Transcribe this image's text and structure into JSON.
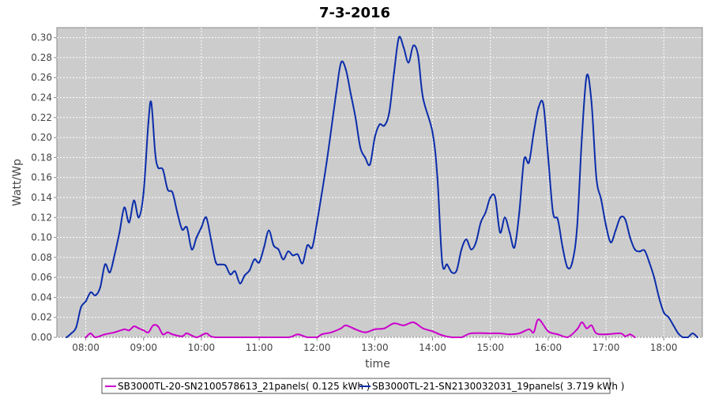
{
  "chart_data": {
    "type": "line",
    "title": "7-3-2016",
    "xlabel": "time",
    "ylabel": "Watt/Wp",
    "xlim": [
      "07:30",
      "18:40"
    ],
    "ylim": [
      0,
      0.31
    ],
    "x_ticks": [
      "08:00",
      "09:00",
      "10:00",
      "11:00",
      "12:00",
      "13:00",
      "14:00",
      "15:00",
      "16:00",
      "17:00",
      "18:00"
    ],
    "y_ticks": [
      "0.00",
      "0.02",
      "0.04",
      "0.06",
      "0.08",
      "0.10",
      "0.12",
      "0.14",
      "0.16",
      "0.18",
      "0.20",
      "0.22",
      "0.24",
      "0.26",
      "0.28",
      "0.30"
    ],
    "grid": true,
    "legend_position": "bottom",
    "background_color": "#cccccc",
    "series": [
      {
        "name": "SB3000TL-20-SN2100578613_21panels( 0.125 kWh )",
        "color": "#cc00cc",
        "points": [
          [
            "08:00",
            0.0
          ],
          [
            "08:05",
            0.004
          ],
          [
            "08:10",
            0.0
          ],
          [
            "08:20",
            0.003
          ],
          [
            "08:30",
            0.005
          ],
          [
            "08:40",
            0.008
          ],
          [
            "08:45",
            0.007
          ],
          [
            "08:50",
            0.011
          ],
          [
            "08:55",
            0.009
          ],
          [
            "09:00",
            0.007
          ],
          [
            "09:05",
            0.005
          ],
          [
            "09:10",
            0.012
          ],
          [
            "09:15",
            0.011
          ],
          [
            "09:20",
            0.003
          ],
          [
            "09:25",
            0.005
          ],
          [
            "09:30",
            0.003
          ],
          [
            "09:40",
            0.001
          ],
          [
            "09:45",
            0.004
          ],
          [
            "09:55",
            0.0
          ],
          [
            "10:05",
            0.004
          ],
          [
            "10:15",
            0.0
          ],
          [
            "11:00",
            0.0
          ],
          [
            "11:30",
            0.0
          ],
          [
            "11:40",
            0.003
          ],
          [
            "11:50",
            0.0
          ],
          [
            "12:00",
            0.0
          ],
          [
            "12:05",
            0.003
          ],
          [
            "12:15",
            0.005
          ],
          [
            "12:25",
            0.009
          ],
          [
            "12:30",
            0.012
          ],
          [
            "12:40",
            0.008
          ],
          [
            "12:50",
            0.005
          ],
          [
            "13:00",
            0.008
          ],
          [
            "13:10",
            0.009
          ],
          [
            "13:20",
            0.014
          ],
          [
            "13:30",
            0.012
          ],
          [
            "13:40",
            0.015
          ],
          [
            "13:50",
            0.009
          ],
          [
            "14:00",
            0.006
          ],
          [
            "14:10",
            0.002
          ],
          [
            "14:20",
            0.0
          ],
          [
            "14:30",
            0.0
          ],
          [
            "14:40",
            0.004
          ],
          [
            "15:00",
            0.004
          ],
          [
            "15:10",
            0.004
          ],
          [
            "15:20",
            0.003
          ],
          [
            "15:30",
            0.004
          ],
          [
            "15:40",
            0.008
          ],
          [
            "15:45",
            0.005
          ],
          [
            "15:50",
            0.018
          ],
          [
            "16:00",
            0.006
          ],
          [
            "16:10",
            0.003
          ],
          [
            "16:20",
            0.0
          ],
          [
            "16:30",
            0.008
          ],
          [
            "16:35",
            0.015
          ],
          [
            "16:40",
            0.009
          ],
          [
            "16:45",
            0.012
          ],
          [
            "16:50",
            0.004
          ],
          [
            "17:00",
            0.003
          ],
          [
            "17:15",
            0.004
          ],
          [
            "17:20",
            0.001
          ],
          [
            "17:25",
            0.003
          ],
          [
            "17:30",
            0.0
          ]
        ]
      },
      {
        "name": "SB3000TL-21-SN2130032031_19panels( 3.719 kWh )",
        "color": "#0b2dab",
        "points": [
          [
            "07:40",
            0.0
          ],
          [
            "07:45",
            0.004
          ],
          [
            "07:50",
            0.01
          ],
          [
            "07:55",
            0.03
          ],
          [
            "08:00",
            0.036
          ],
          [
            "08:05",
            0.045
          ],
          [
            "08:10",
            0.042
          ],
          [
            "08:15",
            0.05
          ],
          [
            "08:20",
            0.073
          ],
          [
            "08:25",
            0.065
          ],
          [
            "08:30",
            0.083
          ],
          [
            "08:35",
            0.105
          ],
          [
            "08:40",
            0.13
          ],
          [
            "08:45",
            0.115
          ],
          [
            "08:50",
            0.137
          ],
          [
            "08:55",
            0.12
          ],
          [
            "09:00",
            0.145
          ],
          [
            "09:05",
            0.215
          ],
          [
            "09:08",
            0.235
          ],
          [
            "09:12",
            0.185
          ],
          [
            "09:15",
            0.17
          ],
          [
            "09:20",
            0.168
          ],
          [
            "09:25",
            0.148
          ],
          [
            "09:30",
            0.145
          ],
          [
            "09:35",
            0.125
          ],
          [
            "09:40",
            0.108
          ],
          [
            "09:45",
            0.11
          ],
          [
            "09:50",
            0.088
          ],
          [
            "09:55",
            0.1
          ],
          [
            "10:00",
            0.11
          ],
          [
            "10:05",
            0.12
          ],
          [
            "10:10",
            0.098
          ],
          [
            "10:15",
            0.075
          ],
          [
            "10:20",
            0.073
          ],
          [
            "10:25",
            0.072
          ],
          [
            "10:30",
            0.063
          ],
          [
            "10:35",
            0.066
          ],
          [
            "10:40",
            0.054
          ],
          [
            "10:45",
            0.062
          ],
          [
            "10:50",
            0.067
          ],
          [
            "10:55",
            0.078
          ],
          [
            "11:00",
            0.075
          ],
          [
            "11:05",
            0.09
          ],
          [
            "11:10",
            0.107
          ],
          [
            "11:15",
            0.092
          ],
          [
            "11:20",
            0.088
          ],
          [
            "11:25",
            0.078
          ],
          [
            "11:30",
            0.086
          ],
          [
            "11:35",
            0.082
          ],
          [
            "11:40",
            0.083
          ],
          [
            "11:45",
            0.074
          ],
          [
            "11:50",
            0.092
          ],
          [
            "11:55",
            0.09
          ],
          [
            "12:00",
            0.115
          ],
          [
            "12:10",
            0.175
          ],
          [
            "12:20",
            0.245
          ],
          [
            "12:25",
            0.275
          ],
          [
            "12:30",
            0.268
          ],
          [
            "12:35",
            0.244
          ],
          [
            "12:40",
            0.22
          ],
          [
            "12:45",
            0.19
          ],
          [
            "12:50",
            0.18
          ],
          [
            "12:55",
            0.173
          ],
          [
            "13:00",
            0.2
          ],
          [
            "13:05",
            0.213
          ],
          [
            "13:10",
            0.212
          ],
          [
            "13:15",
            0.225
          ],
          [
            "13:20",
            0.265
          ],
          [
            "13:25",
            0.3
          ],
          [
            "13:30",
            0.29
          ],
          [
            "13:35",
            0.275
          ],
          [
            "13:40",
            0.292
          ],
          [
            "13:45",
            0.282
          ],
          [
            "13:50",
            0.24
          ],
          [
            "14:00",
            0.205
          ],
          [
            "14:05",
            0.16
          ],
          [
            "14:10",
            0.075
          ],
          [
            "14:15",
            0.073
          ],
          [
            "14:20",
            0.065
          ],
          [
            "14:25",
            0.067
          ],
          [
            "14:30",
            0.088
          ],
          [
            "14:35",
            0.098
          ],
          [
            "14:40",
            0.088
          ],
          [
            "14:45",
            0.095
          ],
          [
            "14:50",
            0.115
          ],
          [
            "14:55",
            0.125
          ],
          [
            "15:00",
            0.14
          ],
          [
            "15:05",
            0.14
          ],
          [
            "15:10",
            0.105
          ],
          [
            "15:15",
            0.12
          ],
          [
            "15:20",
            0.105
          ],
          [
            "15:25",
            0.09
          ],
          [
            "15:30",
            0.125
          ],
          [
            "15:35",
            0.178
          ],
          [
            "15:40",
            0.175
          ],
          [
            "15:45",
            0.205
          ],
          [
            "15:50",
            0.23
          ],
          [
            "15:55",
            0.233
          ],
          [
            "16:00",
            0.18
          ],
          [
            "16:05",
            0.125
          ],
          [
            "16:10",
            0.118
          ],
          [
            "16:15",
            0.09
          ],
          [
            "16:20",
            0.07
          ],
          [
            "16:25",
            0.075
          ],
          [
            "16:30",
            0.11
          ],
          [
            "16:35",
            0.2
          ],
          [
            "16:40",
            0.262
          ],
          [
            "16:45",
            0.235
          ],
          [
            "16:50",
            0.16
          ],
          [
            "16:55",
            0.138
          ],
          [
            "17:00",
            0.112
          ],
          [
            "17:05",
            0.095
          ],
          [
            "17:10",
            0.107
          ],
          [
            "17:15",
            0.12
          ],
          [
            "17:20",
            0.118
          ],
          [
            "17:25",
            0.1
          ],
          [
            "17:30",
            0.088
          ],
          [
            "17:35",
            0.086
          ],
          [
            "17:40",
            0.087
          ],
          [
            "17:45",
            0.075
          ],
          [
            "17:50",
            0.06
          ],
          [
            "17:55",
            0.04
          ],
          [
            "18:00",
            0.025
          ],
          [
            "18:05",
            0.02
          ],
          [
            "18:10",
            0.012
          ],
          [
            "18:15",
            0.004
          ],
          [
            "18:20",
            0.0
          ],
          [
            "18:25",
            0.0
          ],
          [
            "18:30",
            0.004
          ],
          [
            "18:35",
            0.0
          ]
        ]
      }
    ]
  }
}
